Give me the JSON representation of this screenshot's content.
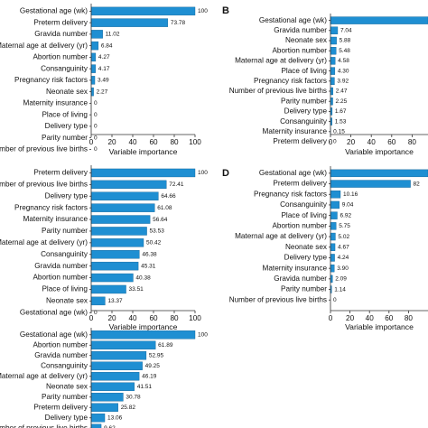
{
  "bar_color": "#1f8fd2",
  "chart_data": [
    {
      "type": "bar",
      "orientation": "horizontal",
      "panel_label": "",
      "xlabel": "Variable importance",
      "xlim": [
        0,
        100
      ],
      "xticks": [
        0,
        20,
        40,
        60,
        80,
        100
      ],
      "categories": [
        "Gestational age (wk)",
        "Preterm delivery",
        "Gravida number",
        "Maternal age at delivery (yr)",
        "Abortion number",
        "Consanguinity",
        "Pregnancy risk factors",
        "Neonate sex",
        "Maternity insurance",
        "Place of living",
        "Delivery type",
        "Parity number",
        "Number of previous live births"
      ],
      "values": [
        100,
        73.78,
        11.02,
        6.84,
        4.27,
        4.17,
        3.49,
        2.27,
        0,
        0,
        0,
        0,
        0
      ],
      "value_labels": [
        "100",
        "73.78",
        "11.02",
        "6.84",
        "4.27",
        "4.17",
        "3.49",
        "2.27",
        "0",
        "0",
        "0",
        "0",
        "0"
      ]
    },
    {
      "type": "bar",
      "orientation": "horizontal",
      "panel_label": "B",
      "xlabel": "Variable importance",
      "xlim": [
        0,
        100
      ],
      "xticks": [
        0,
        20,
        40,
        60,
        80
      ],
      "categories": [
        "Gestational age (wk)",
        "Gravida number",
        "Neonate sex",
        "Abortion number",
        "Maternal age at delivery (yr)",
        "Place of living",
        "Pregnancy risk factors",
        "Number of previous live births",
        "Parity number",
        "Delivery type",
        "Consanguinity",
        "Maternity insurance",
        "Preterm delivery"
      ],
      "values": [
        100,
        7.04,
        5.88,
        5.48,
        4.58,
        4.3,
        3.92,
        2.47,
        2.25,
        1.67,
        1.53,
        0.15,
        0
      ],
      "value_labels": [
        "",
        "7.04",
        "5.88",
        "5.48",
        "4.58",
        "4.30",
        "3.92",
        "2.47",
        "2.25",
        "1.67",
        "1.53",
        "0.15",
        "0"
      ]
    },
    {
      "type": "bar",
      "orientation": "horizontal",
      "panel_label": "",
      "xlabel": "Variable importance",
      "xlim": [
        0,
        100
      ],
      "xticks": [
        0,
        20,
        40,
        60,
        80,
        100
      ],
      "categories": [
        "Preterm delivery",
        "Number of previous live births",
        "Delivery type",
        "Pregnancy risk factors",
        "Maternity insurance",
        "Parity number",
        "Maternal age at delivery (yr)",
        "Consanguinity",
        "Gravida number",
        "Abortion number",
        "Place of living",
        "Neonate sex",
        "Gestational age (wk)"
      ],
      "values": [
        100,
        72.41,
        64.66,
        61.08,
        56.64,
        53.53,
        50.42,
        46.38,
        45.31,
        40.38,
        33.51,
        13.37,
        0
      ],
      "value_labels": [
        "100",
        "72.41",
        "64.66",
        "61.08",
        "56.64",
        "53.53",
        "50.42",
        "46.38",
        "45.31",
        "40.38",
        "33.51",
        "13.37",
        "0"
      ]
    },
    {
      "type": "bar",
      "orientation": "horizontal",
      "panel_label": "D",
      "xlabel": "Variable importance",
      "xlim": [
        0,
        100
      ],
      "xticks": [
        0,
        20,
        40,
        60,
        80
      ],
      "categories": [
        "Gestational age (wk)",
        "Preterm delivery",
        "Pregnancy risk factors",
        "Consanguinity",
        "Place of living",
        "Abortion number",
        "Maternal age at delivery (yr)",
        "Neonate sex",
        "Delivery type",
        "Maternity insurance",
        "Gravida number",
        "Parity number",
        "Number of previous live births"
      ],
      "values": [
        100,
        82,
        10.16,
        9.04,
        6.92,
        5.75,
        5.02,
        4.67,
        4.24,
        3.9,
        2.09,
        1.14,
        0
      ],
      "value_labels": [
        "",
        "82",
        "10.16",
        "9.04",
        "6.92",
        "5.75",
        "5.02",
        "4.67",
        "4.24",
        "3.90",
        "2.09",
        "1.14",
        "0"
      ]
    },
    {
      "type": "bar",
      "orientation": "horizontal",
      "panel_label": "",
      "xlabel": "",
      "xlim": [
        0,
        100
      ],
      "xticks": [],
      "categories": [
        "Gestational age (wk)",
        "Abortion number",
        "Gravida number",
        "Consanguinity",
        "Maternal age at delivery (yr)",
        "Neonate sex",
        "Parity number",
        "Preterm delivery",
        "Delivery type",
        "Number of previous live births"
      ],
      "values": [
        100,
        61.89,
        52.95,
        49.25,
        46.19,
        41.51,
        30.78,
        25.82,
        13.06,
        9.62
      ],
      "value_labels": [
        "100",
        "61.89",
        "52.95",
        "49.25",
        "46.19",
        "41.51",
        "30.78",
        "25.82",
        "13.06",
        "9.62"
      ]
    }
  ]
}
